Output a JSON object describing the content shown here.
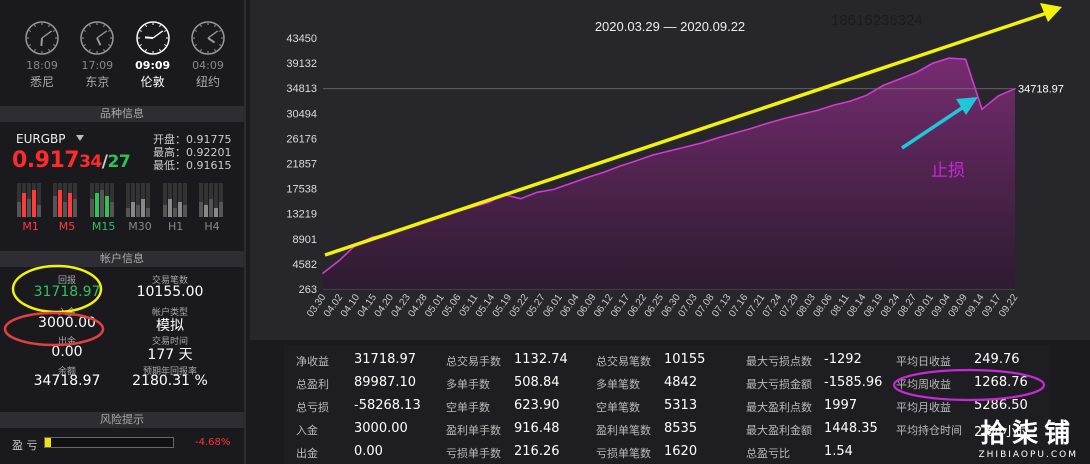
{
  "clocks": [
    {
      "time": "18:09",
      "city": "悉尼",
      "active": false,
      "h": 6,
      "m": 9
    },
    {
      "time": "17:09",
      "city": "东京",
      "active": false,
      "h": 5,
      "m": 9
    },
    {
      "time": "09:09",
      "city": "伦敦",
      "active": true,
      "h": 9,
      "m": 9
    },
    {
      "time": "04:09",
      "city": "纽约",
      "active": false,
      "h": 4,
      "m": 9
    }
  ],
  "sections": {
    "symbol_info": "品种信息",
    "account_info": "帐户信息",
    "risk": "风险提示"
  },
  "symbol": {
    "name": "EURGBP",
    "price_main": "0.917",
    "price_small": "34",
    "price_sep": "/",
    "price_small2": "27",
    "open": "开盘：0.91775",
    "high": "最高：0.92201",
    "low": "最低：0.91615"
  },
  "timeframes": [
    {
      "label": "M1",
      "color": "#ff3b3b"
    },
    {
      "label": "M5",
      "color": "#ff3b3b"
    },
    {
      "label": "M15",
      "color": "#2fc25b"
    },
    {
      "label": "M30",
      "color": "#888888"
    },
    {
      "label": "H1",
      "color": "#888888"
    },
    {
      "label": "H4",
      "color": "#888888"
    }
  ],
  "account": {
    "return_label": "回报",
    "return_value": "31718.97",
    "deposit_label": "入金",
    "deposit_value": "3000.00",
    "withdraw_label": "出金",
    "withdraw_value": "0.00",
    "balance_label": "余额",
    "balance_value": "34718.97",
    "trades_label": "交易笔数",
    "trades_value": "10155.00",
    "type_label": "帐户类型",
    "type_value": "模拟",
    "time_label": "交易时间",
    "time_value": "177 天",
    "annual_label": "预期年回报率",
    "annual_value": "2180.31 %"
  },
  "risk": {
    "label": "盈 亏",
    "value": "-4.68%",
    "level": 0.05
  },
  "chart_data": {
    "type": "area",
    "title": "2020.03.29 — 2020.09.22",
    "phone_annotation": "18616236324",
    "stoploss_annotation": "止损",
    "current_value_label": "34718.97",
    "yticks": [
      "43450",
      "39132",
      "34813",
      "30494",
      "26176",
      "21857",
      "17538",
      "13219",
      "8901",
      "4582",
      "263"
    ],
    "ylim": [
      263,
      43450
    ],
    "xticks": [
      "03.30",
      "04.02",
      "04.10",
      "04.15",
      "04.20",
      "04.23",
      "04.28",
      "05.01",
      "05.06",
      "05.11",
      "05.14",
      "05.19",
      "05.22",
      "05.27",
      "06.01",
      "06.04",
      "06.09",
      "06.12",
      "06.17",
      "06.22",
      "06.25",
      "06.30",
      "07.03",
      "07.08",
      "07.13",
      "07.16",
      "07.21",
      "07.24",
      "07.29",
      "08.03",
      "08.06",
      "08.11",
      "08.14",
      "08.19",
      "08.24",
      "08.27",
      "09.01",
      "09.04",
      "09.09",
      "09.14",
      "09.17",
      "09.22"
    ],
    "series": [
      {
        "values": [
          3000,
          5200,
          7900,
          9200,
          9700,
          10800,
          11900,
          12800,
          13500,
          14300,
          15100,
          16500,
          15800,
          16900,
          17400,
          18400,
          19400,
          20300,
          21400,
          22300,
          23300,
          24000,
          24700,
          25400,
          26300,
          27100,
          27900,
          28800,
          29600,
          30300,
          31000,
          31900,
          32600,
          33600,
          35300,
          36400,
          37500,
          39100,
          40000,
          39800,
          31200,
          33500,
          34718.97
        ]
      }
    ]
  },
  "stats": [
    [
      {
        "k": "净收益",
        "v": "31718.97"
      },
      {
        "k": "总盈利",
        "v": "89987.10"
      },
      {
        "k": "总亏损",
        "v": "-58268.13"
      },
      {
        "k": "入金",
        "v": "3000.00"
      },
      {
        "k": "出金",
        "v": "0.00"
      }
    ],
    [
      {
        "k": "总交易手数",
        "v": "1132.74"
      },
      {
        "k": "多单手数",
        "v": "508.84"
      },
      {
        "k": "空单手数",
        "v": "623.90"
      },
      {
        "k": "盈利单手数",
        "v": "916.48"
      },
      {
        "k": "亏损单手数",
        "v": "216.26"
      }
    ],
    [
      {
        "k": "总交易笔数",
        "v": "10155"
      },
      {
        "k": "多单笔数",
        "v": "4842"
      },
      {
        "k": "空单笔数",
        "v": "5313"
      },
      {
        "k": "盈利单笔数",
        "v": "8535"
      },
      {
        "k": "亏损单笔数",
        "v": "1620"
      }
    ],
    [
      {
        "k": "最大亏损点数",
        "v": "-1292"
      },
      {
        "k": "最大亏损金额",
        "v": "-1585.96"
      },
      {
        "k": "最大盈利点数",
        "v": "1997"
      },
      {
        "k": "最大盈利金额",
        "v": "1448.35"
      },
      {
        "k": "总盈亏比",
        "v": "1.54"
      }
    ],
    [
      {
        "k": "平均日收益",
        "v": "249.76"
      },
      {
        "k": "平均周收益",
        "v": "1268.76"
      },
      {
        "k": "平均月收益",
        "v": "5286.50"
      },
      {
        "k": "平均持仓时间",
        "v": "2.04小时"
      }
    ]
  ],
  "watermark": {
    "big": "拾柒铺",
    "small": "ZHIBIAOPU.COM"
  },
  "colors": {
    "area": "#6a2a66",
    "line": "#d13bd0",
    "yellow": "#f2f20a",
    "cyan": "#1fc8d8",
    "magenta": "#c62ad8",
    "red_circle": "#e04040"
  }
}
